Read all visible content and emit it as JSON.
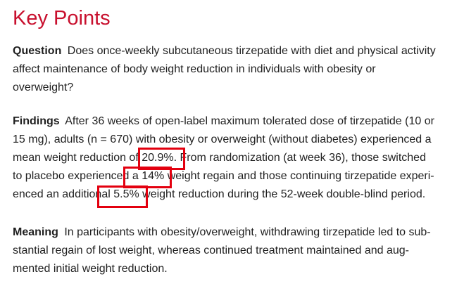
{
  "title": "Key Points",
  "question": {
    "label": "Question",
    "lines": [
      "Does once-weekly subcutaneous tirzepatide with diet and physical activity",
      "affect maintenance of body weight reduction in individuals with obesity or",
      "overweight?"
    ]
  },
  "findings": {
    "label": "Findings",
    "lines": [
      "After 36 weeks of open-label maximum tolerated dose of tirzepatide (10 or",
      "15 mg), adults (n = 670) with obesity or overweight (without diabetes) experienced a",
      "mean weight reduction of 20.9%. From randomization (at week 36), those switched",
      "to placebo experienced a 14% weight regain and those continuing tirzepatide experi-",
      "enced an additional 5.5% weight reduction during the 52-week double-blind period."
    ]
  },
  "meaning": {
    "label": "Meaning",
    "lines": [
      "In participants with obesity/overweight, withdrawing tirzepatide led to sub-",
      "stantial regain of lost weight, whereas continued treatment maintained and aug-",
      "mented initial weight reduction."
    ]
  },
  "highlight_color": "#e3000f",
  "title_color": "#c8102e"
}
